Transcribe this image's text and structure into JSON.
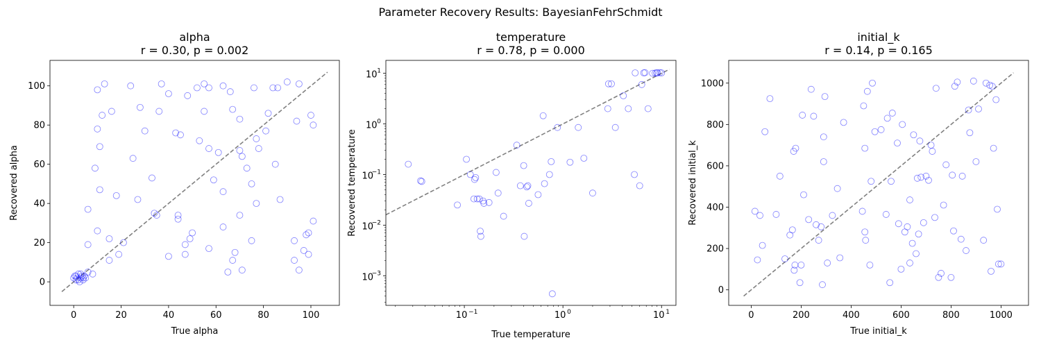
{
  "figure": {
    "suptitle": "Parameter Recovery Results: BayesianFehrSchmidt"
  },
  "chart_data": [
    {
      "type": "scatter",
      "title": "alpha",
      "subtitle": "r = 0.30, p = 0.002",
      "xlabel": "True alpha",
      "ylabel": "Recovered alpha",
      "xscale": "linear",
      "yscale": "linear",
      "xlim": [
        -10,
        112
      ],
      "ylim": [
        -12,
        113
      ],
      "xticks": [
        0,
        20,
        40,
        60,
        80,
        100
      ],
      "xtick_labels": [
        "0",
        "20",
        "40",
        "60",
        "80",
        "100"
      ],
      "yticks": [
        0,
        20,
        40,
        60,
        80,
        100
      ],
      "ytick_labels": [
        "0",
        "20",
        "40",
        "60",
        "80",
        "100"
      ],
      "identity_line": [
        [
          -5,
          -5
        ],
        [
          107,
          107
        ]
      ],
      "marker_color": "#0000ff",
      "line_color": "#808080",
      "grid": false,
      "legend": "none",
      "points": [
        [
          0,
          2
        ],
        [
          0.5,
          3
        ],
        [
          1,
          1
        ],
        [
          1.5,
          2
        ],
        [
          2,
          4
        ],
        [
          2.5,
          0
        ],
        [
          3,
          2
        ],
        [
          3.5,
          3
        ],
        [
          4,
          1
        ],
        [
          4.5,
          3
        ],
        [
          5,
          2
        ],
        [
          2,
          1
        ],
        [
          1,
          3
        ],
        [
          3,
          4
        ],
        [
          4,
          2
        ],
        [
          6,
          5
        ],
        [
          8,
          4
        ],
        [
          6,
          19
        ],
        [
          6,
          37
        ],
        [
          9,
          58
        ],
        [
          10,
          98
        ],
        [
          10,
          78
        ],
        [
          11,
          69
        ],
        [
          11,
          47
        ],
        [
          10,
          26
        ],
        [
          12,
          85
        ],
        [
          13,
          101
        ],
        [
          15,
          22
        ],
        [
          15,
          11
        ],
        [
          16,
          87
        ],
        [
          18,
          44
        ],
        [
          19,
          14
        ],
        [
          21,
          20
        ],
        [
          24,
          100
        ],
        [
          25,
          63
        ],
        [
          27,
          42
        ],
        [
          28,
          89
        ],
        [
          30,
          77
        ],
        [
          33,
          53
        ],
        [
          34,
          35
        ],
        [
          35,
          34
        ],
        [
          36,
          87
        ],
        [
          37,
          101
        ],
        [
          40,
          13
        ],
        [
          40,
          96
        ],
        [
          43,
          76
        ],
        [
          44,
          34
        ],
        [
          44,
          32
        ],
        [
          45,
          75
        ],
        [
          47,
          19
        ],
        [
          47,
          14
        ],
        [
          48,
          95
        ],
        [
          49,
          22
        ],
        [
          50,
          25
        ],
        [
          52,
          99
        ],
        [
          53,
          72
        ],
        [
          55,
          87
        ],
        [
          55,
          101
        ],
        [
          57,
          68
        ],
        [
          57,
          99
        ],
        [
          57,
          17
        ],
        [
          59,
          52
        ],
        [
          61,
          66
        ],
        [
          63,
          100
        ],
        [
          63,
          46
        ],
        [
          63,
          28
        ],
        [
          65,
          5
        ],
        [
          66,
          97
        ],
        [
          67,
          88
        ],
        [
          67,
          11
        ],
        [
          68,
          15
        ],
        [
          70,
          83
        ],
        [
          70,
          67
        ],
        [
          70,
          34
        ],
        [
          71,
          6
        ],
        [
          71,
          64
        ],
        [
          73,
          58
        ],
        [
          75,
          50
        ],
        [
          75,
          21
        ],
        [
          76,
          99
        ],
        [
          77,
          73
        ],
        [
          77,
          40
        ],
        [
          78,
          68
        ],
        [
          81,
          77
        ],
        [
          82,
          86
        ],
        [
          84,
          99
        ],
        [
          85,
          60
        ],
        [
          86,
          99
        ],
        [
          87,
          42
        ],
        [
          90,
          102
        ],
        [
          93,
          21
        ],
        [
          93,
          11
        ],
        [
          94,
          82
        ],
        [
          95,
          101
        ],
        [
          95,
          6
        ],
        [
          97,
          16
        ],
        [
          98,
          24
        ],
        [
          99,
          25
        ],
        [
          99,
          14
        ],
        [
          100,
          85
        ],
        [
          101,
          80
        ],
        [
          101,
          31
        ]
      ]
    },
    {
      "type": "scatter",
      "title": "temperature",
      "subtitle": "r = 0.78, p = 0.000",
      "xlabel": "True temperature",
      "ylabel": "Recovered temperature",
      "xscale": "log",
      "yscale": "log",
      "xlim": [
        0.016,
        14
      ],
      "ylim": [
        0.00026,
        18
      ],
      "xticks": [
        0.1,
        1,
        10
      ],
      "xtick_labels": [
        "10",
        "10",
        "10"
      ],
      "xtick_exponents": [
        "−1",
        "0",
        "1"
      ],
      "yticks": [
        0.001,
        0.01,
        0.1,
        1,
        10
      ],
      "ytick_labels": [
        "10",
        "10",
        "10",
        "10",
        "10"
      ],
      "ytick_exponents": [
        "−3",
        "−2",
        "−1",
        "0",
        "1"
      ],
      "identity_line": [
        [
          0.016,
          0.016
        ],
        [
          12,
          12
        ]
      ],
      "marker_color": "#0000ff",
      "line_color": "#808080",
      "grid": false,
      "legend": "none",
      "points": [
        [
          0.027,
          0.16
        ],
        [
          0.036,
          0.075
        ],
        [
          0.037,
          0.073
        ],
        [
          0.085,
          0.025
        ],
        [
          0.105,
          0.2
        ],
        [
          0.115,
          0.1
        ],
        [
          0.125,
          0.033
        ],
        [
          0.127,
          0.08
        ],
        [
          0.13,
          0.087
        ],
        [
          0.135,
          0.033
        ],
        [
          0.142,
          0.033
        ],
        [
          0.145,
          0.0076
        ],
        [
          0.147,
          0.006
        ],
        [
          0.155,
          0.03
        ],
        [
          0.158,
          0.027
        ],
        [
          0.178,
          0.028
        ],
        [
          0.21,
          0.11
        ],
        [
          0.22,
          0.043
        ],
        [
          0.25,
          0.015
        ],
        [
          0.34,
          0.38
        ],
        [
          0.37,
          0.06
        ],
        [
          0.4,
          0.15
        ],
        [
          0.405,
          0.006
        ],
        [
          0.43,
          0.057
        ],
        [
          0.44,
          0.06
        ],
        [
          0.45,
          0.027
        ],
        [
          0.56,
          0.04
        ],
        [
          0.63,
          1.45
        ],
        [
          0.65,
          0.066
        ],
        [
          0.73,
          0.1
        ],
        [
          0.76,
          0.18
        ],
        [
          0.78,
          0.00044
        ],
        [
          0.88,
          0.85
        ],
        [
          1.18,
          0.175
        ],
        [
          1.43,
          0.85
        ],
        [
          1.63,
          0.21
        ],
        [
          2.0,
          0.043
        ],
        [
          2.85,
          2.0
        ],
        [
          2.9,
          6.2
        ],
        [
          3.1,
          6.2
        ],
        [
          3.4,
          0.85
        ],
        [
          4.1,
          3.6
        ],
        [
          4.6,
          2.0
        ],
        [
          5.3,
          0.1
        ],
        [
          5.4,
          10.2
        ],
        [
          6.0,
          0.06
        ],
        [
          6.3,
          6.0
        ],
        [
          6.6,
          10.2
        ],
        [
          6.8,
          10.3
        ],
        [
          7.3,
          2.0
        ],
        [
          8.1,
          10.0
        ],
        [
          8.6,
          10.1
        ],
        [
          8.9,
          10.2
        ],
        [
          9.1,
          10.2
        ],
        [
          9.6,
          10.3
        ],
        [
          10.0,
          10.2
        ]
      ]
    },
    {
      "type": "scatter",
      "title": "initial_k",
      "subtitle": "r = 0.14, p = 0.165",
      "xlabel": "True initial_k",
      "ylabel": "Recovered initial_k",
      "xscale": "linear",
      "yscale": "linear",
      "xlim": [
        -90,
        1110
      ],
      "ylim": [
        -75,
        1110
      ],
      "xticks": [
        0,
        200,
        400,
        600,
        800,
        1000
      ],
      "xtick_labels": [
        "0",
        "200",
        "400",
        "600",
        "800",
        "1000"
      ],
      "yticks": [
        0,
        200,
        400,
        600,
        800,
        1000
      ],
      "ytick_labels": [
        "0",
        "200",
        "400",
        "600",
        "800",
        "1000"
      ],
      "identity_line": [
        [
          -30,
          -30
        ],
        [
          1050,
          1050
        ]
      ],
      "marker_color": "#0000ff",
      "line_color": "#808080",
      "grid": false,
      "legend": "none",
      "points": [
        [
          15,
          380
        ],
        [
          25,
          145
        ],
        [
          35,
          360
        ],
        [
          45,
          215
        ],
        [
          55,
          765
        ],
        [
          75,
          925
        ],
        [
          100,
          365
        ],
        [
          115,
          550
        ],
        [
          135,
          150
        ],
        [
          155,
          265
        ],
        [
          165,
          290
        ],
        [
          170,
          670
        ],
        [
          172,
          95
        ],
        [
          175,
          120
        ],
        [
          178,
          685
        ],
        [
          195,
          35
        ],
        [
          200,
          120
        ],
        [
          205,
          845
        ],
        [
          210,
          460
        ],
        [
          230,
          340
        ],
        [
          240,
          970
        ],
        [
          250,
          840
        ],
        [
          260,
          315
        ],
        [
          270,
          240
        ],
        [
          280,
          305
        ],
        [
          285,
          25
        ],
        [
          290,
          740
        ],
        [
          290,
          620
        ],
        [
          295,
          935
        ],
        [
          305,
          130
        ],
        [
          325,
          360
        ],
        [
          345,
          490
        ],
        [
          355,
          155
        ],
        [
          370,
          810
        ],
        [
          445,
          380
        ],
        [
          450,
          890
        ],
        [
          455,
          685
        ],
        [
          455,
          280
        ],
        [
          458,
          240
        ],
        [
          465,
          960
        ],
        [
          475,
          120
        ],
        [
          480,
          525
        ],
        [
          485,
          1000
        ],
        [
          495,
          765
        ],
        [
          520,
          775
        ],
        [
          540,
          365
        ],
        [
          545,
          830
        ],
        [
          555,
          35
        ],
        [
          560,
          525
        ],
        [
          565,
          855
        ],
        [
          585,
          710
        ],
        [
          590,
          320
        ],
        [
          600,
          100
        ],
        [
          605,
          800
        ],
        [
          615,
          280
        ],
        [
          625,
          305
        ],
        [
          635,
          435
        ],
        [
          635,
          130
        ],
        [
          645,
          225
        ],
        [
          650,
          750
        ],
        [
          660,
          175
        ],
        [
          665,
          540
        ],
        [
          670,
          270
        ],
        [
          675,
          720
        ],
        [
          680,
          545
        ],
        [
          690,
          325
        ],
        [
          700,
          550
        ],
        [
          710,
          530
        ],
        [
          720,
          700
        ],
        [
          725,
          670
        ],
        [
          735,
          350
        ],
        [
          740,
          975
        ],
        [
          750,
          60
        ],
        [
          760,
          80
        ],
        [
          770,
          410
        ],
        [
          780,
          605
        ],
        [
          800,
          60
        ],
        [
          805,
          555
        ],
        [
          810,
          285
        ],
        [
          815,
          985
        ],
        [
          825,
          1005
        ],
        [
          840,
          245
        ],
        [
          845,
          550
        ],
        [
          860,
          190
        ],
        [
          870,
          870
        ],
        [
          875,
          760
        ],
        [
          890,
          1010
        ],
        [
          900,
          620
        ],
        [
          910,
          875
        ],
        [
          930,
          240
        ],
        [
          940,
          1000
        ],
        [
          955,
          990
        ],
        [
          960,
          90
        ],
        [
          965,
          985
        ],
        [
          970,
          685
        ],
        [
          980,
          920
        ],
        [
          985,
          390
        ],
        [
          990,
          125
        ],
        [
          1000,
          125
        ]
      ]
    }
  ]
}
